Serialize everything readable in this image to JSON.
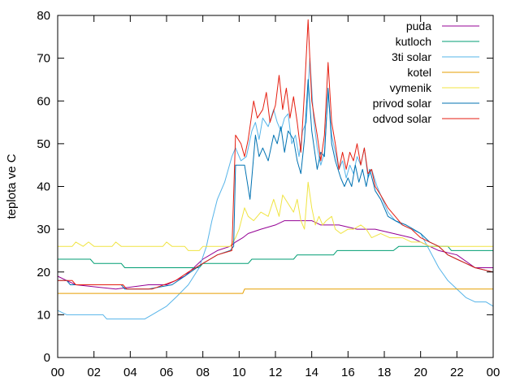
{
  "chart_data": {
    "type": "line",
    "title": "",
    "xlabel": "",
    "ylabel": "teplota ve C",
    "xlim": [
      0,
      24
    ],
    "ylim": [
      0,
      80
    ],
    "x_ticks": [
      "00",
      "02",
      "04",
      "06",
      "08",
      "10",
      "12",
      "14",
      "16",
      "18",
      "20",
      "22",
      "00"
    ],
    "y_ticks": [
      "0",
      "10",
      "20",
      "30",
      "40",
      "50",
      "60",
      "70",
      "80"
    ],
    "legend_position": "top-right",
    "grid": false,
    "series": [
      {
        "name": "puda",
        "color": "#940094",
        "points": [
          [
            0,
            19
          ],
          [
            0.5,
            18
          ],
          [
            1,
            17
          ],
          [
            3.2,
            16
          ],
          [
            5,
            17
          ],
          [
            6,
            17
          ],
          [
            7,
            19
          ],
          [
            8,
            23
          ],
          [
            8.8,
            25
          ],
          [
            9.5,
            26
          ],
          [
            9.8,
            27
          ],
          [
            10.2,
            28
          ],
          [
            10.5,
            29
          ],
          [
            11.2,
            30
          ],
          [
            12,
            31
          ],
          [
            12.5,
            32
          ],
          [
            14,
            32
          ],
          [
            14.5,
            31
          ],
          [
            15.5,
            31
          ],
          [
            16.5,
            30
          ],
          [
            17.5,
            30
          ],
          [
            18.5,
            29
          ],
          [
            19.5,
            28
          ],
          [
            20,
            27
          ],
          [
            21,
            25
          ],
          [
            22,
            24
          ],
          [
            23,
            21
          ],
          [
            24,
            21
          ]
        ]
      },
      {
        "name": "kutloch",
        "color": "#009e73",
        "points": [
          [
            0,
            23
          ],
          [
            1.8,
            23
          ],
          [
            2,
            22
          ],
          [
            3.5,
            22
          ],
          [
            3.7,
            21
          ],
          [
            7.8,
            21
          ],
          [
            8,
            22
          ],
          [
            10.5,
            22
          ],
          [
            10.7,
            23
          ],
          [
            13,
            23
          ],
          [
            13.2,
            24
          ],
          [
            15.2,
            24
          ],
          [
            15.4,
            25
          ],
          [
            18.5,
            25
          ],
          [
            18.8,
            26
          ],
          [
            21.5,
            26
          ],
          [
            21.7,
            25
          ],
          [
            24,
            25
          ]
        ]
      },
      {
        "name": "3ti solar",
        "color": "#56b4e9",
        "points": [
          [
            0,
            11
          ],
          [
            0.5,
            10
          ],
          [
            2.5,
            10
          ],
          [
            2.7,
            9
          ],
          [
            4.8,
            9
          ],
          [
            5.2,
            10
          ],
          [
            6,
            12
          ],
          [
            6.5,
            14
          ],
          [
            7.2,
            17
          ],
          [
            7.8,
            21
          ],
          [
            8.2,
            26
          ],
          [
            8.5,
            32
          ],
          [
            8.8,
            37
          ],
          [
            9.2,
            41
          ],
          [
            9.6,
            47
          ],
          [
            9.8,
            49
          ],
          [
            10.1,
            46
          ],
          [
            10.4,
            47
          ],
          [
            10.7,
            53
          ],
          [
            10.9,
            55
          ],
          [
            11.1,
            51
          ],
          [
            11.3,
            56
          ],
          [
            11.6,
            54
          ],
          [
            11.9,
            58
          ],
          [
            12.1,
            55
          ],
          [
            12.3,
            53
          ],
          [
            12.5,
            56
          ],
          [
            12.7,
            57
          ],
          [
            12.9,
            50
          ],
          [
            13.1,
            52
          ],
          [
            13.3,
            47
          ],
          [
            13.5,
            53
          ],
          [
            13.7,
            55
          ],
          [
            13.9,
            70
          ],
          [
            14.1,
            56
          ],
          [
            14.3,
            49
          ],
          [
            14.5,
            45
          ],
          [
            14.7,
            48
          ],
          [
            14.9,
            62
          ],
          [
            15.1,
            52
          ],
          [
            15.3,
            48
          ],
          [
            15.5,
            44
          ],
          [
            15.7,
            46
          ],
          [
            15.9,
            42
          ],
          [
            16.1,
            45
          ],
          [
            16.3,
            43
          ],
          [
            16.5,
            47
          ],
          [
            16.7,
            45
          ],
          [
            16.9,
            49
          ],
          [
            17.1,
            42
          ],
          [
            17.3,
            44
          ],
          [
            17.6,
            40
          ],
          [
            17.9,
            37
          ],
          [
            18.2,
            34
          ],
          [
            18.6,
            32
          ],
          [
            19,
            31
          ],
          [
            19.5,
            30
          ],
          [
            20,
            29
          ],
          [
            20.5,
            25
          ],
          [
            21,
            21
          ],
          [
            21.5,
            18
          ],
          [
            22,
            16
          ],
          [
            22.5,
            14
          ],
          [
            23,
            13
          ],
          [
            23.6,
            13
          ],
          [
            24,
            12
          ]
        ]
      },
      {
        "name": "kotel",
        "color": "#e69f00",
        "points": [
          [
            0,
            15
          ],
          [
            10.2,
            15
          ],
          [
            10.3,
            16
          ],
          [
            24,
            16
          ]
        ]
      },
      {
        "name": "vymenik",
        "color": "#f0e442",
        "points": [
          [
            0,
            26
          ],
          [
            0.8,
            26
          ],
          [
            1,
            27
          ],
          [
            1.4,
            26
          ],
          [
            1.7,
            27
          ],
          [
            2,
            26
          ],
          [
            3,
            26
          ],
          [
            3.2,
            27
          ],
          [
            3.5,
            26
          ],
          [
            5.8,
            26
          ],
          [
            6,
            27
          ],
          [
            6.3,
            26
          ],
          [
            7,
            26
          ],
          [
            7.2,
            25
          ],
          [
            7.8,
            25
          ],
          [
            8,
            26
          ],
          [
            9.5,
            26
          ],
          [
            9.8,
            28
          ],
          [
            10,
            30
          ],
          [
            10.3,
            35
          ],
          [
            10.5,
            33
          ],
          [
            10.8,
            32
          ],
          [
            11.2,
            34
          ],
          [
            11.6,
            33
          ],
          [
            11.9,
            37
          ],
          [
            12.2,
            33
          ],
          [
            12.4,
            38
          ],
          [
            12.7,
            36
          ],
          [
            13,
            34
          ],
          [
            13.2,
            37
          ],
          [
            13.4,
            32
          ],
          [
            13.6,
            30
          ],
          [
            13.8,
            41
          ],
          [
            14,
            35
          ],
          [
            14.2,
            31
          ],
          [
            14.4,
            33
          ],
          [
            14.6,
            31
          ],
          [
            14.8,
            32
          ],
          [
            15.1,
            33
          ],
          [
            15.3,
            30
          ],
          [
            15.6,
            29
          ],
          [
            16,
            30
          ],
          [
            16.3,
            30
          ],
          [
            16.7,
            31
          ],
          [
            17,
            30
          ],
          [
            17.3,
            28
          ],
          [
            17.8,
            29
          ],
          [
            18.3,
            28
          ],
          [
            19,
            28
          ],
          [
            19.5,
            27
          ],
          [
            20,
            27
          ],
          [
            20.5,
            26
          ],
          [
            24,
            26
          ]
        ]
      },
      {
        "name": "privod solar",
        "color": "#0072b2",
        "points": [
          [
            0,
            18
          ],
          [
            0.5,
            18
          ],
          [
            0.7,
            17
          ],
          [
            3.5,
            17
          ],
          [
            3.7,
            16
          ],
          [
            5,
            16
          ],
          [
            6.3,
            17
          ],
          [
            7,
            19
          ],
          [
            8,
            22
          ],
          [
            8.8,
            24
          ],
          [
            9.5,
            25
          ],
          [
            9.7,
            26
          ],
          [
            9.8,
            45
          ],
          [
            10.3,
            45
          ],
          [
            10.6,
            37
          ],
          [
            10.9,
            52
          ],
          [
            11.1,
            47
          ],
          [
            11.3,
            49
          ],
          [
            11.6,
            46
          ],
          [
            11.9,
            52
          ],
          [
            12.1,
            50
          ],
          [
            12.3,
            54
          ],
          [
            12.5,
            48
          ],
          [
            12.7,
            53
          ],
          [
            13,
            51
          ],
          [
            13.2,
            46
          ],
          [
            13.4,
            43
          ],
          [
            13.6,
            51
          ],
          [
            13.8,
            65
          ],
          [
            14,
            53
          ],
          [
            14.3,
            44
          ],
          [
            14.5,
            48
          ],
          [
            14.7,
            47
          ],
          [
            14.9,
            63
          ],
          [
            15.1,
            50
          ],
          [
            15.3,
            46
          ],
          [
            15.6,
            42
          ],
          [
            15.8,
            40
          ],
          [
            16,
            42
          ],
          [
            16.2,
            40
          ],
          [
            16.4,
            45
          ],
          [
            16.6,
            41
          ],
          [
            16.8,
            44
          ],
          [
            17,
            40
          ],
          [
            17.2,
            44
          ],
          [
            17.5,
            39
          ],
          [
            17.8,
            37
          ],
          [
            18.2,
            33
          ],
          [
            18.6,
            32
          ],
          [
            19.2,
            31
          ],
          [
            19.6,
            30
          ],
          [
            20,
            29
          ],
          [
            20.5,
            27
          ],
          [
            21,
            26
          ],
          [
            21.5,
            24
          ],
          [
            22,
            23
          ],
          [
            22.5,
            22
          ],
          [
            23,
            21
          ],
          [
            24,
            20
          ]
        ]
      },
      {
        "name": "odvod solar",
        "color": "#e51e10",
        "points": [
          [
            0,
            18
          ],
          [
            0.8,
            18
          ],
          [
            1,
            17
          ],
          [
            3.6,
            17
          ],
          [
            3.8,
            16
          ],
          [
            5.2,
            16
          ],
          [
            6.5,
            18
          ],
          [
            7.2,
            20
          ],
          [
            8,
            22
          ],
          [
            8.8,
            24
          ],
          [
            9.6,
            25
          ],
          [
            9.8,
            52
          ],
          [
            10.1,
            50
          ],
          [
            10.3,
            47
          ],
          [
            10.5,
            51
          ],
          [
            10.8,
            60
          ],
          [
            11,
            56
          ],
          [
            11.3,
            58
          ],
          [
            11.5,
            62
          ],
          [
            11.7,
            55
          ],
          [
            12,
            59
          ],
          [
            12.2,
            66
          ],
          [
            12.4,
            58
          ],
          [
            12.6,
            63
          ],
          [
            12.8,
            56
          ],
          [
            13,
            61
          ],
          [
            13.2,
            55
          ],
          [
            13.4,
            48
          ],
          [
            13.6,
            62
          ],
          [
            13.8,
            79
          ],
          [
            14,
            60
          ],
          [
            14.3,
            52
          ],
          [
            14.5,
            46
          ],
          [
            14.7,
            52
          ],
          [
            14.9,
            69
          ],
          [
            15.1,
            55
          ],
          [
            15.3,
            50
          ],
          [
            15.5,
            44
          ],
          [
            15.7,
            48
          ],
          [
            15.9,
            44
          ],
          [
            16.1,
            48
          ],
          [
            16.3,
            46
          ],
          [
            16.5,
            50
          ],
          [
            16.7,
            45
          ],
          [
            16.9,
            49
          ],
          [
            17.1,
            43
          ],
          [
            17.3,
            44
          ],
          [
            17.5,
            40
          ],
          [
            17.8,
            38
          ],
          [
            18.2,
            35
          ],
          [
            18.6,
            33
          ],
          [
            19,
            31
          ],
          [
            19.5,
            30
          ],
          [
            20,
            28
          ],
          [
            20.5,
            27
          ],
          [
            21,
            26
          ],
          [
            21.5,
            24
          ],
          [
            22,
            23
          ],
          [
            22.5,
            22
          ],
          [
            23,
            21
          ],
          [
            24,
            20
          ]
        ]
      }
    ]
  }
}
